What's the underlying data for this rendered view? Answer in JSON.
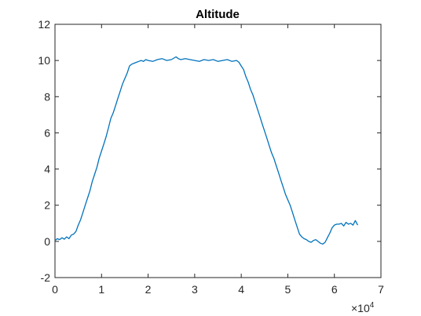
{
  "chart_data": {
    "type": "line",
    "title": "Altitude",
    "xlabel": "",
    "ylabel": "",
    "x_exponent_label": "×10",
    "x_exponent_power": "4",
    "xlim": [
      0,
      7
    ],
    "ylim": [
      -2,
      12
    ],
    "x_ticks": [
      0,
      1,
      2,
      3,
      4,
      5,
      6,
      7
    ],
    "y_ticks": [
      -2,
      0,
      2,
      4,
      6,
      8,
      10,
      12
    ],
    "x_tick_labels": [
      "0",
      "1",
      "2",
      "3",
      "4",
      "5",
      "6",
      "7"
    ],
    "y_tick_labels": [
      "-2",
      "0",
      "2",
      "4",
      "6",
      "8",
      "10",
      "12"
    ],
    "grid": false,
    "box": true,
    "colors": {
      "series": "#0072BD",
      "axis": "#262626"
    },
    "series": [
      {
        "x": [
          0.0,
          0.05,
          0.1,
          0.15,
          0.2,
          0.25,
          0.3,
          0.35,
          0.4,
          0.45,
          0.5,
          0.55,
          0.6,
          0.65,
          0.7,
          0.75,
          0.8,
          0.85,
          0.9,
          0.95,
          1.0,
          1.05,
          1.1,
          1.15,
          1.2,
          1.25,
          1.3,
          1.35,
          1.4,
          1.45,
          1.5,
          1.55,
          1.6,
          1.65,
          1.7,
          1.75,
          1.8,
          1.85,
          1.9,
          1.95,
          2.0,
          2.1,
          2.2,
          2.3,
          2.4,
          2.5,
          2.6,
          2.65,
          2.7,
          2.8,
          2.9,
          3.0,
          3.1,
          3.2,
          3.3,
          3.4,
          3.5,
          3.6,
          3.7,
          3.8,
          3.9,
          3.95,
          4.0,
          4.05,
          4.1,
          4.15,
          4.2,
          4.25,
          4.3,
          4.35,
          4.4,
          4.45,
          4.5,
          4.55,
          4.6,
          4.65,
          4.7,
          4.75,
          4.8,
          4.85,
          4.9,
          4.95,
          5.0,
          5.05,
          5.1,
          5.15,
          5.2,
          5.25,
          5.3,
          5.35,
          5.4,
          5.45,
          5.5,
          5.55,
          5.6,
          5.65,
          5.7,
          5.75,
          5.8,
          5.85,
          5.9,
          5.95,
          6.0,
          6.05,
          6.1,
          6.15,
          6.2,
          6.25,
          6.3,
          6.35,
          6.4,
          6.45,
          6.5
        ],
        "y": [
          0.05,
          0.15,
          0.1,
          0.2,
          0.12,
          0.25,
          0.15,
          0.35,
          0.4,
          0.55,
          0.9,
          1.2,
          1.6,
          2.0,
          2.4,
          2.8,
          3.3,
          3.7,
          4.1,
          4.6,
          5.0,
          5.4,
          5.8,
          6.3,
          6.8,
          7.1,
          7.5,
          7.9,
          8.3,
          8.7,
          9.0,
          9.3,
          9.7,
          9.8,
          9.85,
          9.9,
          9.95,
          10.0,
          9.95,
          10.05,
          10.0,
          9.95,
          10.05,
          10.1,
          10.0,
          10.05,
          10.2,
          10.1,
          10.05,
          10.1,
          10.05,
          10.0,
          9.95,
          10.05,
          10.0,
          10.05,
          9.95,
          10.0,
          10.05,
          9.95,
          10.0,
          9.9,
          9.7,
          9.5,
          9.1,
          8.8,
          8.4,
          8.1,
          7.7,
          7.3,
          6.9,
          6.5,
          6.1,
          5.7,
          5.3,
          4.9,
          4.6,
          4.2,
          3.8,
          3.4,
          3.0,
          2.6,
          2.3,
          2.0,
          1.6,
          1.2,
          0.8,
          0.4,
          0.25,
          0.15,
          0.1,
          0.0,
          -0.05,
          0.05,
          0.1,
          0.0,
          -0.1,
          -0.15,
          -0.05,
          0.2,
          0.45,
          0.75,
          0.9,
          0.95,
          0.95,
          1.0,
          0.85,
          1.05,
          0.95,
          1.0,
          0.9,
          1.15,
          0.9
        ]
      }
    ]
  }
}
